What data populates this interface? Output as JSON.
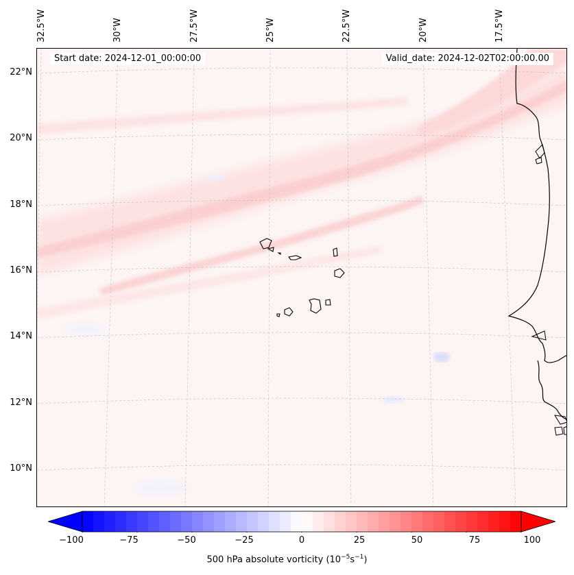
{
  "map": {
    "start_date": "Start date: 2024-12-01_00:00:00",
    "valid_date": "Valid_date: 2024-12-02T02:00:00.00",
    "lon_labels": [
      "32.5°W",
      "30°W",
      "27.5°W",
      "25°W",
      "22.5°W",
      "20°W",
      "17.5°W"
    ],
    "lat_labels": [
      "22°N",
      "20°N",
      "18°N",
      "16°N",
      "14°N",
      "12°N",
      "10°N"
    ],
    "field": "500 hPa absolute vorticity",
    "colors": {
      "neg_max": "#0000ff",
      "zero": "#ffffff",
      "pos_max": "#ff0000",
      "coast": "#000000"
    }
  },
  "colorbar": {
    "ticks": [
      "−100",
      "−75",
      "−50",
      "−25",
      "0",
      "25",
      "50",
      "75",
      "100"
    ],
    "min": -100,
    "max": 100,
    "label_prefix": "500 hPa absolute vorticity (10",
    "label_exp1": "−5",
    "label_mid": "s",
    "label_exp2": "−1",
    "label_suffix": ")"
  }
}
